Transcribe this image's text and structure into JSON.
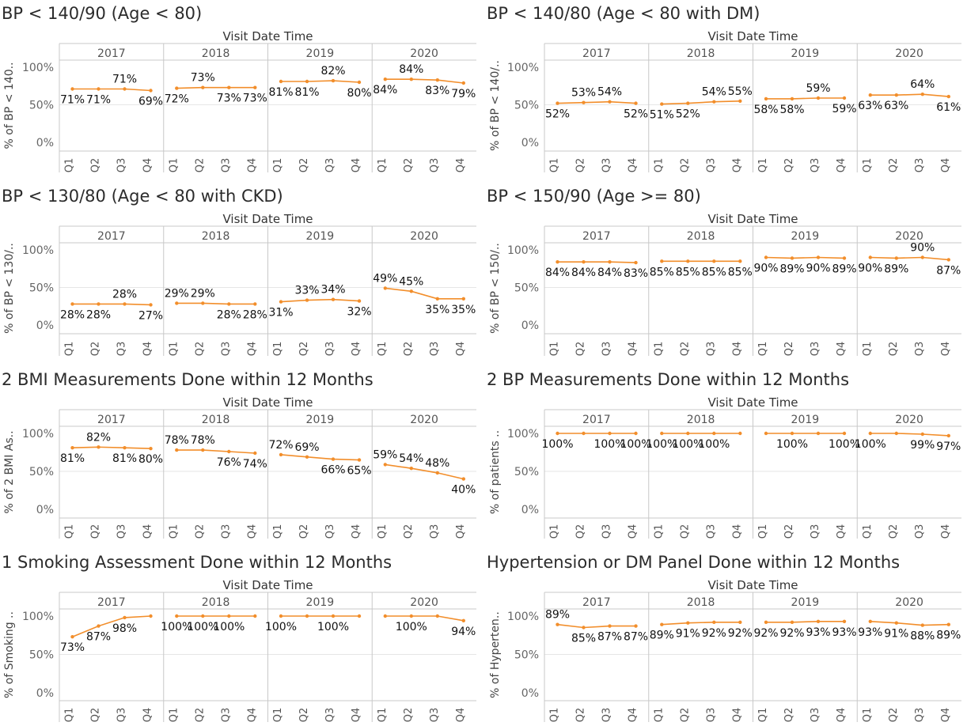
{
  "header": {
    "axis_title": "Visit Date Time"
  },
  "style": {
    "line_color": "#F28E2B",
    "grid_color": "#E6E6E6",
    "border_color": "#C8C8C8"
  },
  "chart_data": [
    {
      "type": "line",
      "title": "BP < 140/90 (Age < 80)",
      "ylabel": "% of BP < 140..",
      "xlabel": "Visit Date Time",
      "years": [
        "2017",
        "2018",
        "2019",
        "2020"
      ],
      "quarters": [
        "Q1",
        "Q2",
        "Q3",
        "Q4"
      ],
      "yticks": [
        "100%",
        "50%",
        "0%"
      ],
      "ylim": [
        0,
        100
      ],
      "values": [
        [
          71,
          71,
          71,
          69
        ],
        [
          72,
          73,
          73,
          73
        ],
        [
          81,
          81,
          82,
          80
        ],
        [
          84,
          84,
          83,
          79
        ]
      ],
      "labels": [
        [
          "71%",
          "71%",
          "71%",
          "69%"
        ],
        [
          "72%",
          "73%",
          "73%",
          "73%"
        ],
        [
          "81%",
          "81%",
          "82%",
          "80%"
        ],
        [
          "84%",
          "84%",
          "83%",
          "79%"
        ]
      ],
      "label_pos": [
        [
          "b",
          "b",
          "a",
          "b"
        ],
        [
          "b",
          "a",
          "b",
          "b"
        ],
        [
          "b",
          "b",
          "a",
          "b"
        ],
        [
          "b",
          "a",
          "b",
          "b"
        ]
      ]
    },
    {
      "type": "line",
      "title": "BP < 140/80 (Age < 80 with DM)",
      "ylabel": "% of BP < 140/..",
      "xlabel": "Visit Date Time",
      "years": [
        "2017",
        "2018",
        "2019",
        "2020"
      ],
      "quarters": [
        "Q1",
        "Q2",
        "Q3",
        "Q4"
      ],
      "yticks": [
        "100%",
        "50%",
        "0%"
      ],
      "ylim": [
        0,
        100
      ],
      "values": [
        [
          52,
          53,
          54,
          52
        ],
        [
          51,
          52,
          54,
          55
        ],
        [
          58,
          58,
          59,
          59
        ],
        [
          63,
          63,
          64,
          61
        ]
      ],
      "labels": [
        [
          "52%",
          "53%",
          "54%",
          "52%"
        ],
        [
          "51%",
          "52%",
          "54%",
          "55%"
        ],
        [
          "58%",
          "58%",
          "59%",
          "59%"
        ],
        [
          "63%",
          "63%",
          "64%",
          "61%"
        ]
      ],
      "label_pos": [
        [
          "b",
          "a",
          "a",
          "b"
        ],
        [
          "b",
          "b",
          "a",
          "a"
        ],
        [
          "b",
          "b",
          "a",
          "b"
        ],
        [
          "b",
          "b",
          "a",
          "b"
        ]
      ]
    },
    {
      "type": "line",
      "title": "BP < 130/80 (Age < 80 with CKD)",
      "ylabel": "% of BP < 130/..",
      "xlabel": "Visit Date Time",
      "years": [
        "2017",
        "2018",
        "2019",
        "2020"
      ],
      "quarters": [
        "Q1",
        "Q2",
        "Q3",
        "Q4"
      ],
      "yticks": [
        "100%",
        "50%",
        "0%"
      ],
      "ylim": [
        0,
        100
      ],
      "values": [
        [
          28,
          28,
          28,
          27
        ],
        [
          29,
          29,
          28,
          28
        ],
        [
          31,
          33,
          34,
          32
        ],
        [
          49,
          45,
          35,
          35
        ]
      ],
      "labels": [
        [
          "28%",
          "28%",
          "28%",
          "27%"
        ],
        [
          "29%",
          "29%",
          "28%",
          "28%"
        ],
        [
          "31%",
          "33%",
          "34%",
          "32%"
        ],
        [
          "49%",
          "45%",
          "35%",
          "35%"
        ]
      ],
      "label_pos": [
        [
          "b",
          "b",
          "a",
          "b"
        ],
        [
          "a",
          "a",
          "b",
          "b"
        ],
        [
          "b",
          "a",
          "a",
          "b"
        ],
        [
          "a",
          "a",
          "b",
          "b"
        ]
      ]
    },
    {
      "type": "line",
      "title": "BP < 150/90 (Age >= 80)",
      "ylabel": "% of BP < 150/..",
      "xlabel": "Visit Date Time",
      "years": [
        "2017",
        "2018",
        "2019",
        "2020"
      ],
      "quarters": [
        "Q1",
        "Q2",
        "Q3",
        "Q4"
      ],
      "yticks": [
        "100%",
        "50%",
        "0%"
      ],
      "ylim": [
        0,
        100
      ],
      "values": [
        [
          84,
          84,
          84,
          83
        ],
        [
          85,
          85,
          85,
          85
        ],
        [
          90,
          89,
          90,
          89
        ],
        [
          90,
          89,
          90,
          87
        ]
      ],
      "labels": [
        [
          "84%",
          "84%",
          "84%",
          "83%"
        ],
        [
          "85%",
          "85%",
          "85%",
          "85%"
        ],
        [
          "90%",
          "89%",
          "90%",
          "89%"
        ],
        [
          "90%",
          "89%",
          "90%",
          "87%"
        ]
      ],
      "label_pos": [
        [
          "b",
          "b",
          "b",
          "b"
        ],
        [
          "b",
          "b",
          "b",
          "b"
        ],
        [
          "b",
          "b",
          "b",
          "b"
        ],
        [
          "b",
          "b",
          "a",
          "b"
        ]
      ]
    },
    {
      "type": "line",
      "title": "2 BMI Measurements Done within 12 Months",
      "ylabel": "% of 2 BMI As..",
      "xlabel": "Visit Date Time",
      "years": [
        "2017",
        "2018",
        "2019",
        "2020"
      ],
      "quarters": [
        "Q1",
        "Q2",
        "Q3",
        "Q4"
      ],
      "yticks": [
        "100%",
        "50%",
        "0%"
      ],
      "ylim": [
        0,
        100
      ],
      "values": [
        [
          81,
          82,
          81,
          80
        ],
        [
          78,
          78,
          76,
          74
        ],
        [
          72,
          69,
          66,
          65
        ],
        [
          59,
          54,
          48,
          40
        ]
      ],
      "labels": [
        [
          "81%",
          "82%",
          "81%",
          "80%"
        ],
        [
          "78%",
          "78%",
          "76%",
          "74%"
        ],
        [
          "72%",
          "69%",
          "66%",
          "65%"
        ],
        [
          "59%",
          "54%",
          "48%",
          "40%"
        ]
      ],
      "label_pos": [
        [
          "b",
          "a",
          "b",
          "b"
        ],
        [
          "a",
          "a",
          "b",
          "b"
        ],
        [
          "a",
          "a",
          "b",
          "b"
        ],
        [
          "a",
          "a",
          "a",
          "b"
        ]
      ]
    },
    {
      "type": "line",
      "title": "2 BP Measurements Done within 12 Months",
      "ylabel": "% of patients ..",
      "xlabel": "Visit Date Time",
      "years": [
        "2017",
        "2018",
        "2019",
        "2020"
      ],
      "quarters": [
        "Q1",
        "Q2",
        "Q3",
        "Q4"
      ],
      "yticks": [
        "100%",
        "50%",
        "0%"
      ],
      "ylim": [
        0,
        100
      ],
      "values": [
        [
          100,
          100,
          100,
          100
        ],
        [
          100,
          100,
          100,
          100
        ],
        [
          100,
          100,
          100,
          100
        ],
        [
          100,
          100,
          99,
          97
        ]
      ],
      "labels": [
        [
          "100%",
          "",
          "100%",
          "100%"
        ],
        [
          "100%",
          "100%",
          "100%",
          ""
        ],
        [
          "",
          "100%",
          "",
          "100%"
        ],
        [
          "100%",
          "",
          "99%",
          "97%"
        ]
      ],
      "label_pos": [
        [
          "b",
          "b",
          "b",
          "b"
        ],
        [
          "b",
          "b",
          "b",
          "b"
        ],
        [
          "b",
          "b",
          "b",
          "b"
        ],
        [
          "b",
          "b",
          "b",
          "b"
        ]
      ]
    },
    {
      "type": "line",
      "title": "1 Smoking Assessment Done within 12 Months",
      "ylabel": "% of Smoking ..",
      "xlabel": "Visit Date Time",
      "years": [
        "2017",
        "2018",
        "2019",
        "2020"
      ],
      "quarters": [
        "Q1",
        "Q2",
        "Q3",
        "Q4"
      ],
      "yticks": [
        "100%",
        "50%",
        "0%"
      ],
      "ylim": [
        0,
        100
      ],
      "values": [
        [
          73,
          87,
          98,
          100
        ],
        [
          100,
          100,
          100,
          100
        ],
        [
          100,
          100,
          100,
          100
        ],
        [
          100,
          100,
          100,
          94
        ]
      ],
      "labels": [
        [
          "73%",
          "87%",
          "98%",
          ""
        ],
        [
          "100%",
          "100%",
          "100%",
          ""
        ],
        [
          "100%",
          "",
          "100%",
          ""
        ],
        [
          "",
          "100%",
          "",
          "94%"
        ]
      ],
      "label_pos": [
        [
          "b",
          "b",
          "b",
          "b"
        ],
        [
          "b",
          "b",
          "b",
          "b"
        ],
        [
          "b",
          "b",
          "b",
          "b"
        ],
        [
          "b",
          "b",
          "b",
          "b"
        ]
      ]
    },
    {
      "type": "line",
      "title": "Hypertension or DM Panel Done within 12 Months",
      "ylabel": "% of Hyperten..",
      "xlabel": "Visit Date Time",
      "years": [
        "2017",
        "2018",
        "2019",
        "2020"
      ],
      "quarters": [
        "Q1",
        "Q2",
        "Q3",
        "Q4"
      ],
      "yticks": [
        "100%",
        "50%",
        "0%"
      ],
      "ylim": [
        0,
        100
      ],
      "values": [
        [
          89,
          85,
          87,
          87
        ],
        [
          89,
          91,
          92,
          92
        ],
        [
          92,
          92,
          93,
          93
        ],
        [
          93,
          91,
          88,
          89
        ]
      ],
      "labels": [
        [
          "89%",
          "85%",
          "87%",
          "87%"
        ],
        [
          "89%",
          "91%",
          "92%",
          "92%"
        ],
        [
          "92%",
          "92%",
          "93%",
          "93%"
        ],
        [
          "93%",
          "91%",
          "88%",
          "89%"
        ]
      ],
      "label_pos": [
        [
          "a",
          "b",
          "b",
          "b"
        ],
        [
          "b",
          "b",
          "b",
          "b"
        ],
        [
          "b",
          "b",
          "b",
          "b"
        ],
        [
          "b",
          "b",
          "b",
          "b"
        ]
      ]
    }
  ]
}
